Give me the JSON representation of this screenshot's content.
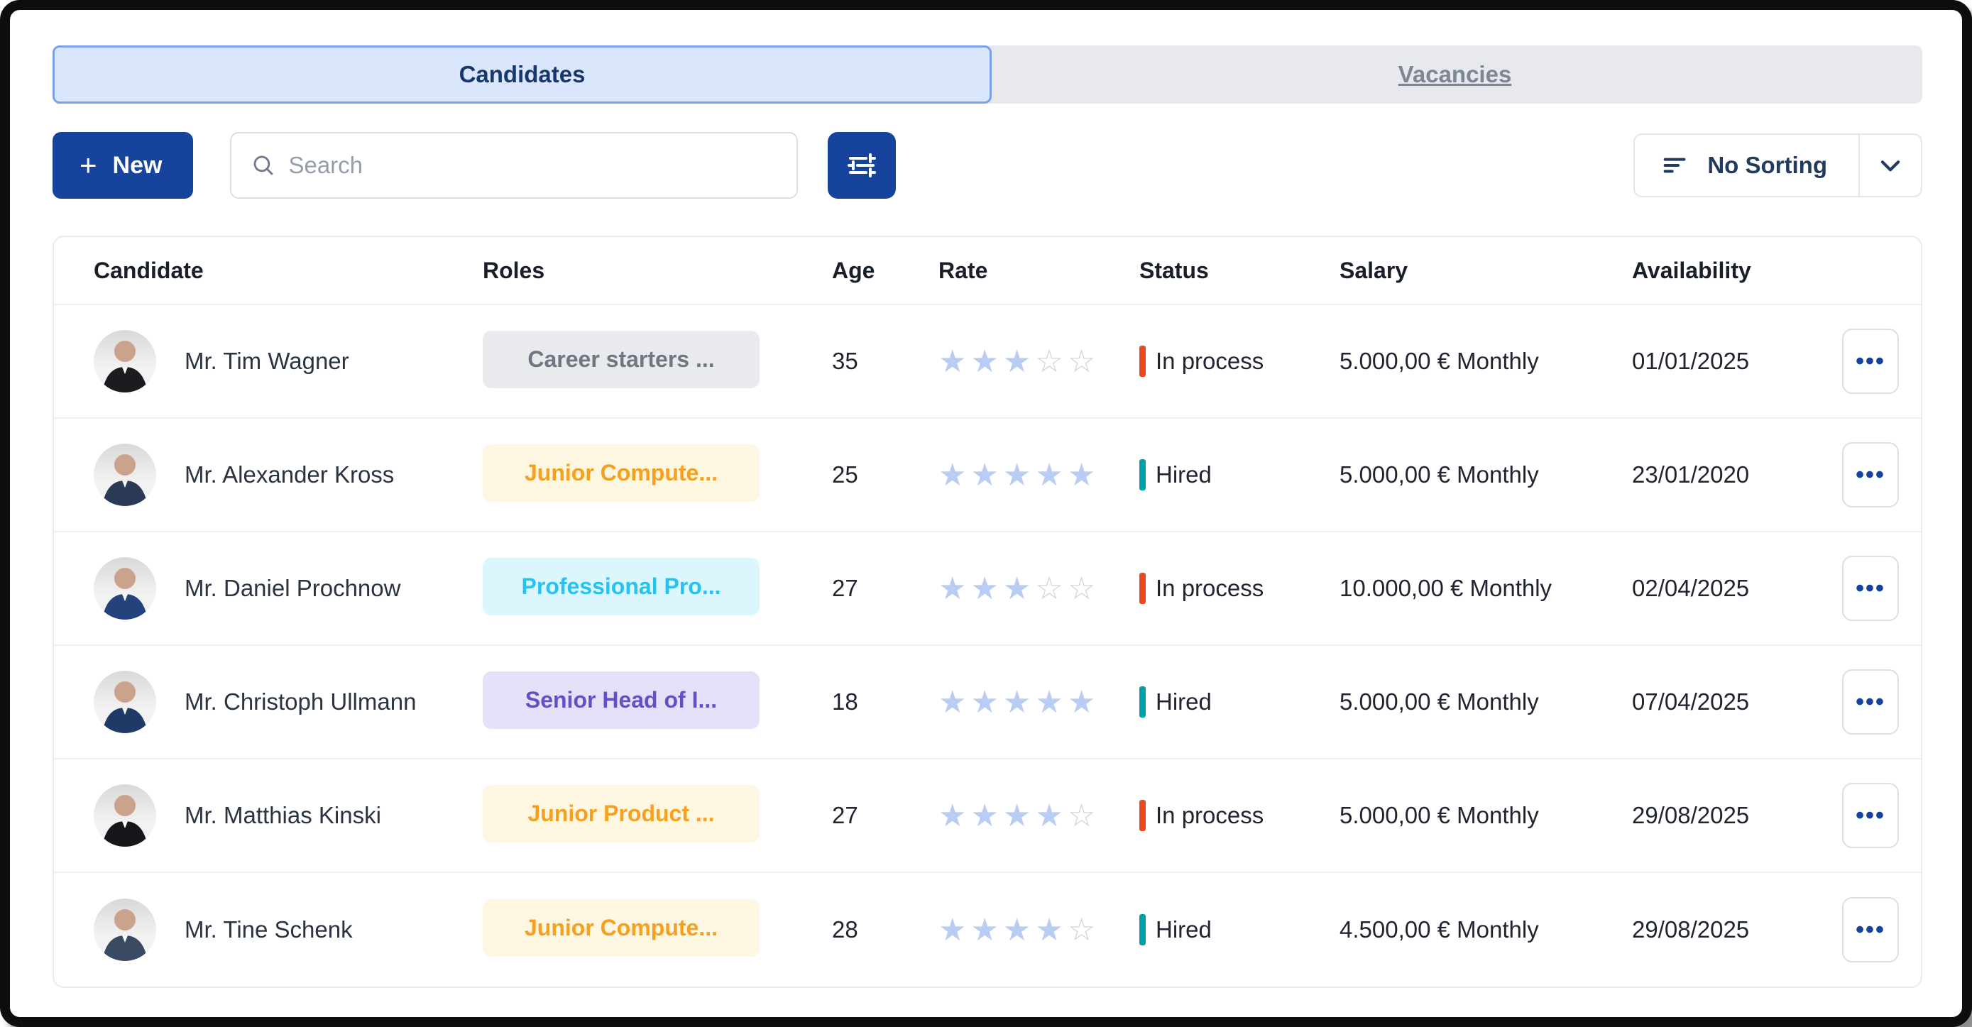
{
  "tabs": [
    {
      "label": "Candidates",
      "active": true
    },
    {
      "label": "Vacancies",
      "active": false
    }
  ],
  "toolbar": {
    "new_label": "New",
    "search_placeholder": "Search",
    "sorting_label": "No Sorting"
  },
  "table": {
    "columns": [
      "Candidate",
      "Roles",
      "Age",
      "Rate",
      "Status",
      "Salary",
      "Availability"
    ],
    "rows": [
      {
        "name": "Mr. Tim Wagner",
        "role": "Career starters ...",
        "role_style": "gray",
        "age": "35",
        "rate": 3,
        "status": "In process",
        "status_type": "in_process",
        "salary": "5.000,00 € Monthly",
        "availability": "01/01/2025",
        "avatar_suit": "#1c1c20"
      },
      {
        "name": "Mr. Alexander Kross",
        "role": "Junior Compute...",
        "role_style": "amber",
        "age": "25",
        "rate": 5,
        "status": "Hired",
        "status_type": "hired",
        "salary": "5.000,00 € Monthly",
        "availability": "23/01/2020",
        "avatar_suit": "#2b3a55"
      },
      {
        "name": "Mr. Daniel Prochnow",
        "role": "Professional Pro...",
        "role_style": "cyan",
        "age": "27",
        "rate": 3,
        "status": "In process",
        "status_type": "in_process",
        "salary": "10.000,00 € Monthly",
        "availability": "02/04/2025",
        "avatar_suit": "#24427c"
      },
      {
        "name": "Mr. Christoph Ullmann",
        "role": "Senior Head of I...",
        "role_style": "purple",
        "age": "18",
        "rate": 5,
        "status": "Hired",
        "status_type": "hired",
        "salary": "5.000,00 € Monthly",
        "availability": "07/04/2025",
        "avatar_suit": "#1f3a66"
      },
      {
        "name": "Mr. Matthias Kinski",
        "role": "Junior Product ...",
        "role_style": "amber",
        "age": "27",
        "rate": 4,
        "status": "In process",
        "status_type": "in_process",
        "salary": "5.000,00 € Monthly",
        "availability": "29/08/2025",
        "avatar_suit": "#17171b"
      },
      {
        "name": "Mr. Tine Schenk",
        "role": "Junior Compute...",
        "role_style": "amber",
        "age": "28",
        "rate": 4,
        "status": "Hired",
        "status_type": "hired",
        "salary": "4.500,00 € Monthly",
        "availability": "29/08/2025",
        "avatar_suit": "#3a4a63"
      }
    ],
    "rating_max": 5,
    "actions_label": "•••"
  },
  "colors": {
    "accent_blue": "#16439c",
    "active_tab_bg": "#d9e6fc",
    "active_tab_border": "#7aa2ea",
    "star_filled": "#b9cdf3",
    "star_empty": "#ccd3dc",
    "status": {
      "in_process": "#e8491f",
      "hired": "#00a0a8"
    },
    "chips": {
      "gray": {
        "bg": "#e9eaee",
        "text": "#6e7681"
      },
      "amber": {
        "bg": "#fdf6e0",
        "text": "#f6a01f"
      },
      "cyan": {
        "bg": "#dcf6fd",
        "text": "#29c1ee"
      },
      "purple": {
        "bg": "#e6e1f9",
        "text": "#6250c5"
      }
    }
  }
}
